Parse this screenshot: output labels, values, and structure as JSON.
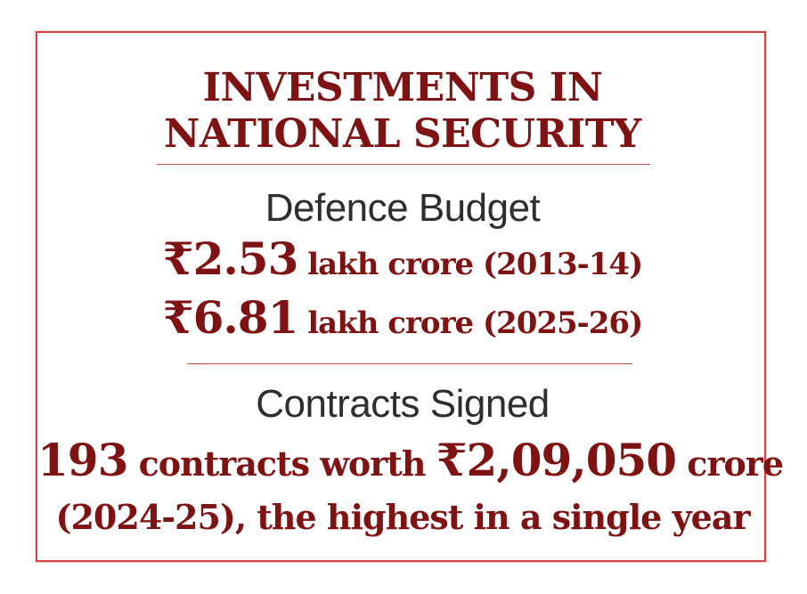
{
  "headline": {
    "line1": "INVESTMENTS IN",
    "line2": "NATIONAL SECURITY"
  },
  "defence_budget": {
    "label": "Defence Budget",
    "entries": [
      {
        "amount": "₹2.53",
        "detail": " lakh crore (2013-14)"
      },
      {
        "amount": "₹6.81",
        "detail": " lakh crore (2025-26)"
      }
    ]
  },
  "contracts": {
    "label": "Contracts Signed",
    "count": "193",
    "count_text": " contracts worth ",
    "value": "₹2,09,050",
    "value_text": " crore",
    "line2": "(2024-25), the highest in a single year"
  },
  "colors": {
    "accent": "#7f1212",
    "border": "#d7443f",
    "text": "#2e2e2e"
  }
}
